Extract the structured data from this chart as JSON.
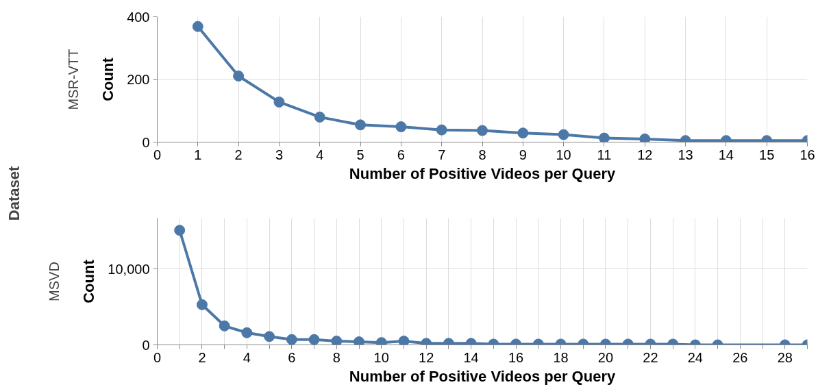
{
  "chart_data": [
    {
      "type": "line",
      "title": "MSR-VTT",
      "xlabel": "Number of Positive Videos per Query",
      "ylabel": "Count",
      "annotations": [
        "Dataset"
      ],
      "marker": "circle",
      "grid": true,
      "x": [
        1,
        2,
        3,
        4,
        5,
        6,
        7,
        8,
        9,
        10,
        11,
        12,
        13,
        14,
        15,
        16
      ],
      "series": [
        {
          "color": "#4c78a8",
          "values": [
            369,
            211,
            128,
            80,
            55,
            49,
            39,
            37,
            29,
            24,
            13,
            10,
            5,
            5,
            5,
            5
          ]
        }
      ],
      "xlim": [
        0,
        16
      ],
      "xticks": [
        0,
        1,
        2,
        3,
        4,
        5,
        6,
        7,
        8,
        9,
        10,
        11,
        12,
        13,
        14,
        15,
        16
      ],
      "ylim": [
        0,
        400
      ],
      "yticks": [
        0,
        200,
        400
      ]
    },
    {
      "type": "line",
      "title": "MSVD",
      "xlabel": "Number of Positive Videos per Query",
      "ylabel": "Count",
      "marker": "circle",
      "grid": true,
      "x": [
        1,
        2,
        3,
        4,
        5,
        6,
        7,
        8,
        9,
        10,
        11,
        12,
        13,
        14,
        15,
        16,
        17,
        18,
        19,
        20,
        21,
        22,
        23,
        24,
        25,
        28,
        29
      ],
      "series": [
        {
          "color": "#4c78a8",
          "values": [
            15100,
            5300,
            2500,
            1600,
            1100,
            700,
            700,
            500,
            400,
            300,
            500,
            200,
            200,
            200,
            100,
            100,
            100,
            100,
            100,
            100,
            100,
            100,
            100,
            0,
            0,
            0,
            0
          ]
        }
      ],
      "xlim": [
        0,
        29
      ],
      "xticks": [
        0,
        {
          "value": 1,
          "label": null
        },
        2,
        {
          "value": 3,
          "label": null
        },
        4,
        {
          "value": 5,
          "label": null
        },
        6,
        {
          "value": 7,
          "label": null
        },
        8,
        {
          "value": 9,
          "label": null
        },
        10,
        {
          "value": 11,
          "label": null
        },
        12,
        {
          "value": 13,
          "label": null
        },
        14,
        {
          "value": 15,
          "label": null
        },
        16,
        {
          "value": 17,
          "label": null
        },
        18,
        {
          "value": 19,
          "label": null
        },
        20,
        {
          "value": 21,
          "label": null
        },
        22,
        {
          "value": 23,
          "label": null
        },
        24,
        {
          "value": 25,
          "label": null
        },
        26,
        {
          "value": 27,
          "label": null
        },
        28,
        {
          "value": 29,
          "label": null
        }
      ],
      "ylim": [
        0,
        16700
      ],
      "yticks": [
        0,
        {
          "value": 10000,
          "label": "10,000"
        }
      ]
    }
  ]
}
